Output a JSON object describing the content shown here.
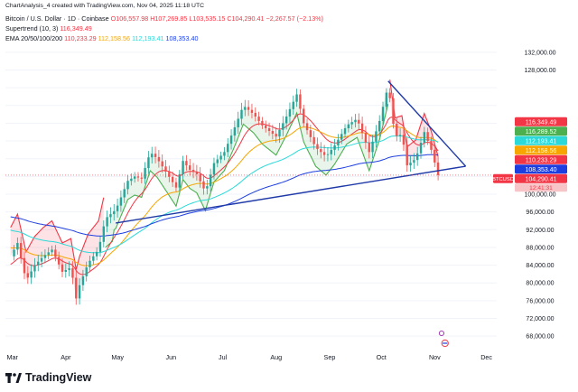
{
  "header": {
    "title": "ChartAnalysis_4 created with TradingView.com, Nov 04, 2025 11:18 UTC",
    "symbol_line": "Bitcoin / U.S. Dollar · 1D · Coinbase",
    "ohlc": "O106,557.98  H107,269.85  L103,535.15  C104,290.41  −2,267.57 (−2.13%)",
    "supertrend_label": "Supertrend (10, 3)",
    "supertrend_value": "116,349.49",
    "ema_label": "EMA 20/50/100/200",
    "ema_values": [
      "110,233.29",
      "112,158.56",
      "112,193.41",
      "108,353.40"
    ]
  },
  "brand": {
    "name": "TradingView"
  },
  "colors": {
    "up": "#26a69a",
    "down": "#ef5350",
    "ema20": "#f23645",
    "ema50": "#f7a600",
    "ema100": "#2bd9d9",
    "ema200": "#1e3fe0",
    "supertrend_up": "#4caf50",
    "supertrend_down": "#f23645",
    "trendline": "#1f3aa8",
    "current_price": "#f23645"
  },
  "chart_data": {
    "type": "candlestick",
    "title": "Bitcoin / U.S. Dollar · 1D · Coinbase",
    "x_tick_labels": [
      "Mar",
      "Apr",
      "May",
      "Jun",
      "Jul",
      "Aug",
      "Sep",
      "Oct",
      "Nov",
      "Dec"
    ],
    "y_tick_labels": [
      "68,000.00",
      "72,000.00",
      "76,000.00",
      "80,000.00",
      "84,000.00",
      "88,000.00",
      "92,000.00",
      "96,000.00",
      "100,000.00",
      "128,000.00",
      "132,000.00"
    ],
    "ylim": [
      66000,
      134000
    ],
    "price_scale": "linear",
    "closes": [
      [
        "2025-03-01",
        86000
      ],
      [
        "2025-03-05",
        89000
      ],
      [
        "2025-03-10",
        80500
      ],
      [
        "2025-03-15",
        84000
      ],
      [
        "2025-03-20",
        86000
      ],
      [
        "2025-03-25",
        87500
      ],
      [
        "2025-03-31",
        82500
      ],
      [
        "2025-04-05",
        83500
      ],
      [
        "2025-04-08",
        76500
      ],
      [
        "2025-04-10",
        79500
      ],
      [
        "2025-04-15",
        84500
      ],
      [
        "2025-04-21",
        87500
      ],
      [
        "2025-04-25",
        94500
      ],
      [
        "2025-05-01",
        96500
      ],
      [
        "2025-05-08",
        103000
      ],
      [
        "2025-05-12",
        104000
      ],
      [
        "2025-05-16",
        103500
      ],
      [
        "2025-05-21",
        109500
      ],
      [
        "2025-05-25",
        108000
      ],
      [
        "2025-05-31",
        104500
      ],
      [
        "2025-06-05",
        101500
      ],
      [
        "2025-06-09",
        107500
      ],
      [
        "2025-06-13",
        105500
      ],
      [
        "2025-06-17",
        104500
      ],
      [
        "2025-06-22",
        100500
      ],
      [
        "2025-06-27",
        107000
      ],
      [
        "2025-07-03",
        109500
      ],
      [
        "2025-07-10",
        116000
      ],
      [
        "2025-07-14",
        120000
      ],
      [
        "2025-07-20",
        118000
      ],
      [
        "2025-07-25",
        115500
      ],
      [
        "2025-08-02",
        113000
      ],
      [
        "2025-08-08",
        117500
      ],
      [
        "2025-08-14",
        122500
      ],
      [
        "2025-08-18",
        116000
      ],
      [
        "2025-08-25",
        110500
      ],
      [
        "2025-08-31",
        108500
      ],
      [
        "2025-09-05",
        111000
      ],
      [
        "2025-09-12",
        115500
      ],
      [
        "2025-09-18",
        117000
      ],
      [
        "2025-09-25",
        109500
      ],
      [
        "2025-10-01",
        116500
      ],
      [
        "2025-10-06",
        124500
      ],
      [
        "2025-10-10",
        113000
      ],
      [
        "2025-10-14",
        113500
      ],
      [
        "2025-10-17",
        106500
      ],
      [
        "2025-10-22",
        108000
      ],
      [
        "2025-10-27",
        114000
      ],
      [
        "2025-10-31",
        110000
      ],
      [
        "2025-11-04",
        104290.41
      ]
    ],
    "last_candle": {
      "date": "2025-11-04",
      "open": 106557.98,
      "high": 107269.85,
      "low": 103535.15,
      "close": 104290.41,
      "change": -2267.57,
      "change_pct": -2.13
    },
    "indicators": {
      "ema20": 110233.29,
      "ema50": 112158.56,
      "ema100": 112193.41,
      "ema200": 108353.4,
      "supertrend": 116349.49,
      "supertrend_lower_line": 116289.52
    },
    "price_labels": [
      {
        "text": "116,349.49",
        "color": "#f23645",
        "value": 116349.49
      },
      {
        "text": "116,289.52",
        "color": "#4caf50",
        "value": 116289.52
      },
      {
        "text": "112,193.41",
        "color": "#2bd9d9",
        "value": 112193.41
      },
      {
        "text": "112,158.56",
        "color": "#f7a600",
        "value": 112158.56
      },
      {
        "text": "110,233.29",
        "color": "#f23645",
        "value": 110233.29
      },
      {
        "text": "108,353.40",
        "color": "#1e3fe0",
        "value": 108353.4
      },
      {
        "text": "104,290.41",
        "color": "#f23645",
        "value": 104290.41
      }
    ],
    "symbol_badge": "BTCUSD",
    "countdown": "12:41:31",
    "trendlines": [
      {
        "name": "rising-support",
        "from": [
          "2025-05-01",
          93500
        ],
        "to": [
          "2025-11-20",
          106300
        ]
      },
      {
        "name": "falling-resistance",
        "from": [
          "2025-10-06",
          125500
        ],
        "to": [
          "2025-11-20",
          106300
        ]
      }
    ]
  }
}
